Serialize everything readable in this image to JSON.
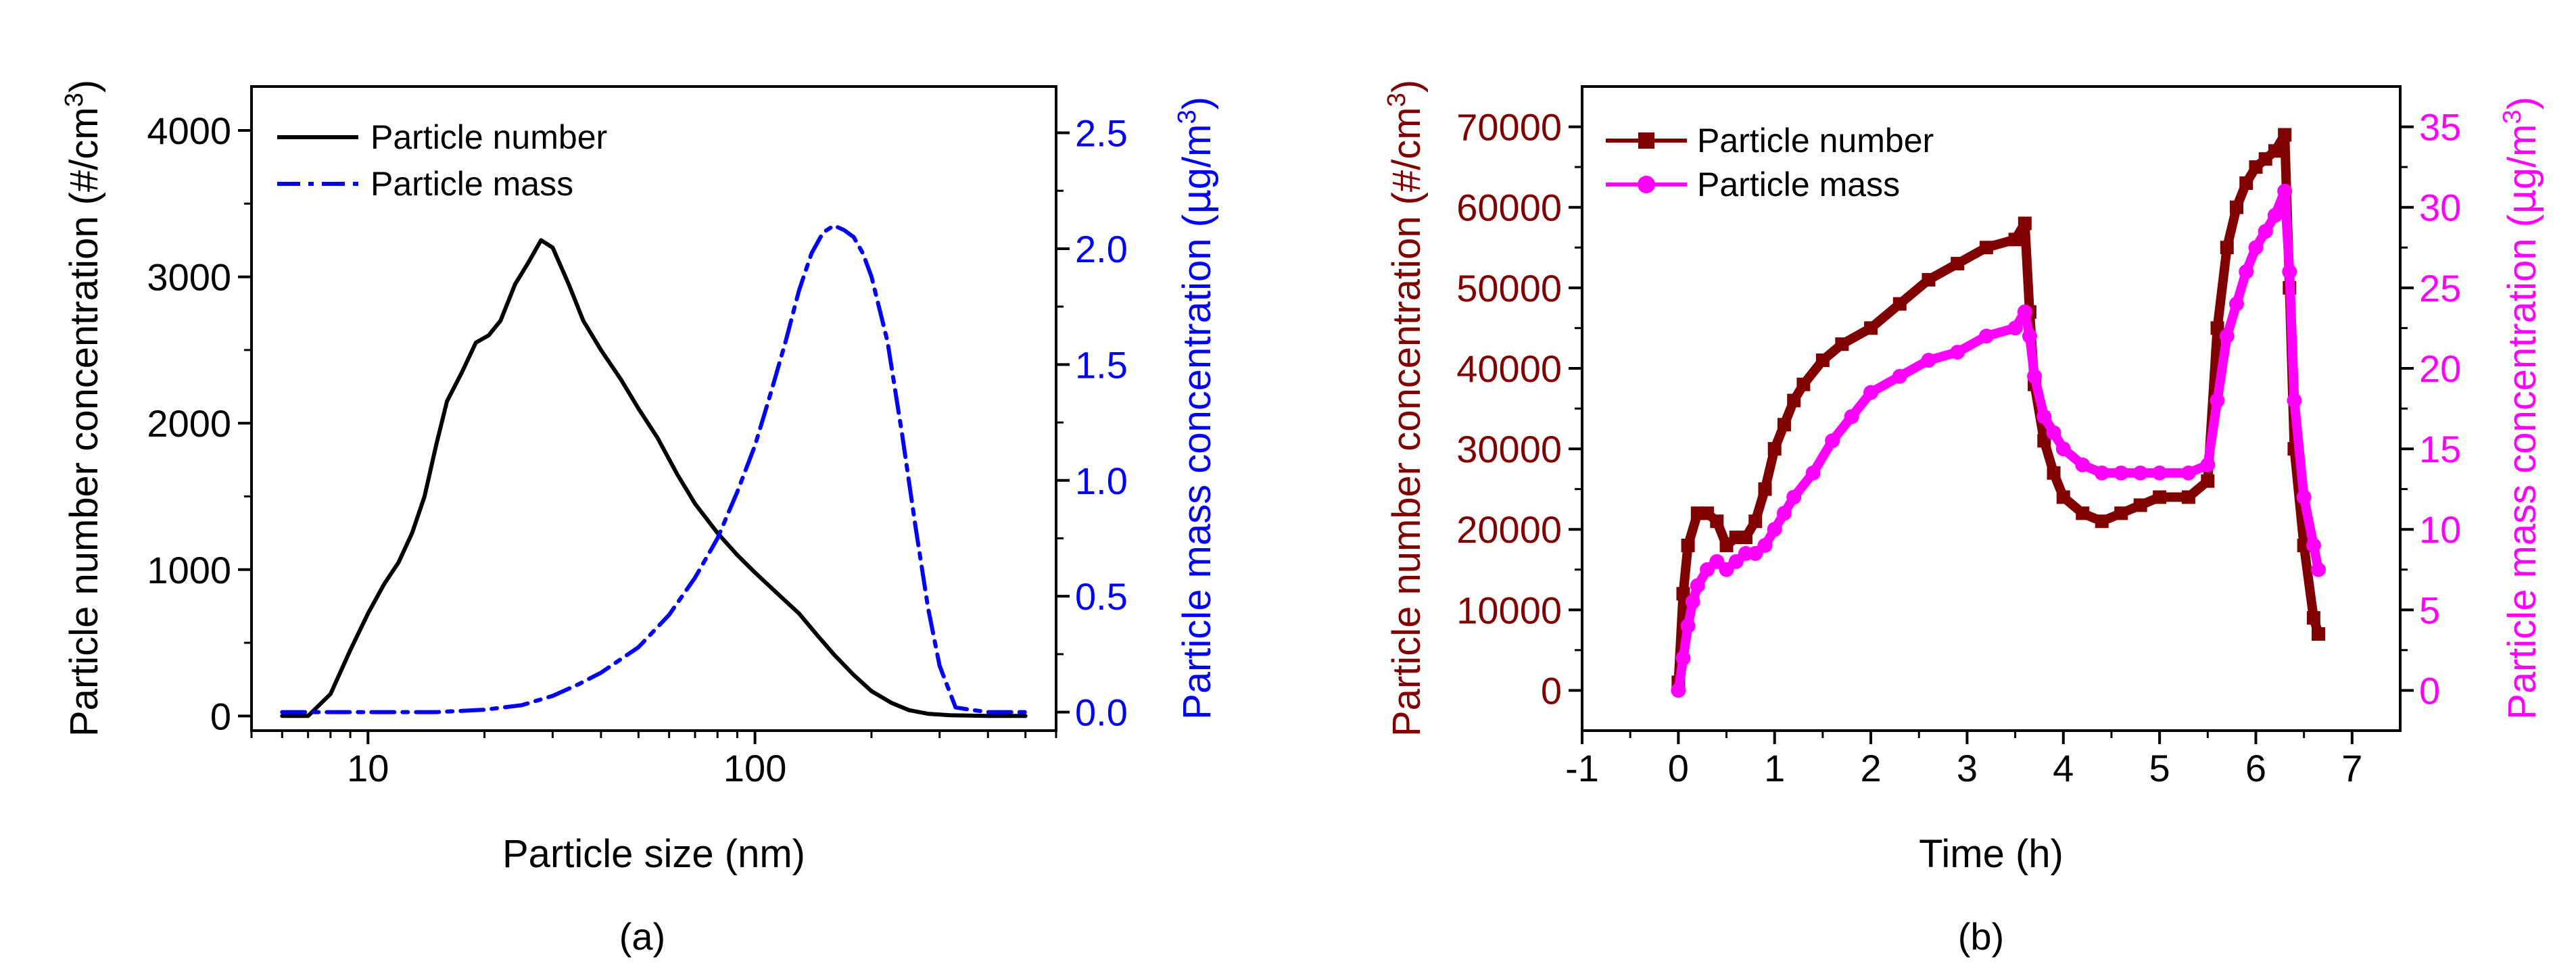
{
  "chart_data": [
    {
      "type": "line",
      "panel_label": "(a)",
      "xlabel": "Particle size (nm)",
      "x_scale": "log",
      "xlim": [
        5,
        600
      ],
      "x_ticks": [
        10,
        100
      ],
      "x_tick_labels": [
        "10",
        "100"
      ],
      "ylabel": "Particle number concentration (#/cm³)",
      "ylabel_parts": [
        "Particle number concentration (#/cm",
        "3",
        ")"
      ],
      "ylim": [
        -100,
        4300
      ],
      "y_ticks": [
        0,
        1000,
        2000,
        3000,
        4000
      ],
      "y_tick_labels": [
        "0",
        "1000",
        "2000",
        "3000",
        "4000"
      ],
      "y2label": "Particle mass concentration (µg/m³)",
      "y2label_parts": [
        "Particle mass concentration (",
        "µ",
        "g/m",
        "3",
        ")"
      ],
      "y2lim": [
        -0.08,
        2.7
      ],
      "y2_ticks": [
        0.0,
        0.5,
        1.0,
        1.5,
        2.0,
        2.5
      ],
      "y2_tick_labels": [
        "0.0",
        "0.5",
        "1.0",
        "1.5",
        "2.0",
        "2.5"
      ],
      "y2_color": "#0000ff",
      "legend_position": "top-left",
      "series": [
        {
          "name": "Particle number",
          "axis": "left",
          "color": "#000000",
          "style": "solid",
          "x": [
            6,
            7,
            8,
            9,
            10,
            11,
            12,
            13,
            14,
            15,
            16,
            17.5,
            19,
            20.5,
            22,
            24,
            26,
            28,
            30,
            33,
            36,
            40,
            45,
            50,
            56,
            63,
            70,
            80,
            90,
            100,
            115,
            130,
            145,
            160,
            180,
            200,
            225,
            250,
            280,
            320,
            400,
            500
          ],
          "values": [
            0,
            0,
            150,
            450,
            700,
            900,
            1050,
            1250,
            1500,
            1850,
            2150,
            2350,
            2550,
            2600,
            2700,
            2950,
            3100,
            3250,
            3200,
            2950,
            2700,
            2500,
            2300,
            2100,
            1900,
            1650,
            1450,
            1250,
            1100,
            980,
            830,
            700,
            550,
            420,
            280,
            170,
            90,
            40,
            15,
            5,
            0,
            0
          ]
        },
        {
          "name": "Particle mass",
          "axis": "right",
          "color": "#0000ff",
          "style": "dash-dot",
          "x": [
            6,
            7,
            8,
            10,
            12,
            15,
            20,
            25,
            30,
            35,
            40,
            50,
            60,
            70,
            80,
            90,
            100,
            110,
            120,
            130,
            140,
            150,
            160,
            170,
            180,
            190,
            200,
            220,
            240,
            260,
            280,
            300,
            330,
            360,
            400,
            500
          ],
          "values": [
            0,
            0,
            0,
            0,
            0,
            0,
            0.01,
            0.03,
            0.07,
            0.12,
            0.17,
            0.28,
            0.42,
            0.58,
            0.75,
            0.95,
            1.15,
            1.38,
            1.6,
            1.82,
            1.98,
            2.07,
            2.1,
            2.08,
            2.05,
            1.98,
            1.88,
            1.6,
            1.2,
            0.8,
            0.45,
            0.2,
            0.02,
            0.01,
            0.0,
            0.0
          ]
        }
      ]
    },
    {
      "type": "line",
      "panel_label": "(b)",
      "xlabel": "Time (h)",
      "xlim": [
        -1,
        7.5
      ],
      "x_ticks": [
        -1,
        0,
        1,
        2,
        3,
        4,
        5,
        6,
        7
      ],
      "x_tick_labels": [
        "-1",
        "0",
        "1",
        "2",
        "3",
        "4",
        "5",
        "6",
        "7"
      ],
      "ylabel": "Particle number concentration (#/cm³)",
      "ylabel_parts": [
        "Particle number concentration (#/cm",
        "3",
        ")"
      ],
      "ylim": [
        -5000,
        75000
      ],
      "y_ticks": [
        0,
        10000,
        20000,
        30000,
        40000,
        50000,
        60000,
        70000
      ],
      "y_tick_labels": [
        "0",
        "10000",
        "20000",
        "30000",
        "40000",
        "50000",
        "60000",
        "70000"
      ],
      "y_color": "#800000",
      "y2label": "Particle mass concentration (µg/m³)",
      "y2label_parts": [
        "Particle mass concentration (",
        "µ",
        "g/m",
        "3",
        ")"
      ],
      "y2lim": [
        -2.5,
        37.5
      ],
      "y2_ticks": [
        0,
        5,
        10,
        15,
        20,
        25,
        30,
        35
      ],
      "y2_tick_labels": [
        "0",
        "5",
        "10",
        "15",
        "20",
        "25",
        "30",
        "35"
      ],
      "y2_color": "#ff00ff",
      "legend_position": "top-left",
      "series": [
        {
          "name": "Particle number",
          "axis": "left",
          "color": "#800000",
          "marker": "square",
          "x": [
            0,
            0.05,
            0.1,
            0.2,
            0.3,
            0.4,
            0.5,
            0.6,
            0.7,
            0.8,
            0.9,
            1.0,
            1.1,
            1.2,
            1.3,
            1.5,
            1.7,
            2.0,
            2.3,
            2.6,
            2.9,
            3.2,
            3.5,
            3.6,
            3.65,
            3.7,
            3.8,
            3.9,
            4.0,
            4.2,
            4.4,
            4.6,
            4.8,
            5.0,
            5.3,
            5.5,
            5.6,
            5.7,
            5.8,
            5.9,
            6.0,
            6.1,
            6.2,
            6.3,
            6.35,
            6.4,
            6.5,
            6.6,
            6.65
          ],
          "values": [
            1000,
            12000,
            18000,
            22000,
            22000,
            21000,
            18000,
            19000,
            19000,
            21000,
            25000,
            30000,
            33000,
            36000,
            38000,
            41000,
            43000,
            45000,
            48000,
            51000,
            53000,
            55000,
            56000,
            58000,
            47000,
            38000,
            31000,
            27000,
            24000,
            22000,
            21000,
            22000,
            23000,
            24000,
            24000,
            26000,
            45000,
            55000,
            60000,
            63000,
            65000,
            66000,
            67000,
            69000,
            50000,
            30000,
            18000,
            9000,
            7000
          ]
        },
        {
          "name": "Particle mass",
          "axis": "right",
          "color": "#ff00ff",
          "marker": "circle",
          "x": [
            0,
            0.05,
            0.1,
            0.15,
            0.2,
            0.3,
            0.4,
            0.5,
            0.6,
            0.7,
            0.8,
            0.9,
            1.0,
            1.1,
            1.2,
            1.4,
            1.6,
            1.8,
            2.0,
            2.3,
            2.6,
            2.9,
            3.2,
            3.5,
            3.6,
            3.65,
            3.7,
            3.8,
            3.9,
            4.0,
            4.2,
            4.4,
            4.6,
            4.8,
            5.0,
            5.3,
            5.5,
            5.6,
            5.7,
            5.8,
            5.9,
            6.0,
            6.1,
            6.2,
            6.3,
            6.35,
            6.4,
            6.5,
            6.6,
            6.65
          ],
          "values": [
            0,
            2,
            4,
            5.5,
            6.5,
            7.5,
            8,
            7.5,
            8,
            8.5,
            8.5,
            9,
            10,
            11,
            12,
            13.5,
            15.5,
            17,
            18.5,
            19.5,
            20.5,
            21,
            22,
            22.5,
            23.5,
            22,
            19.5,
            17,
            16,
            15,
            14,
            13.5,
            13.5,
            13.5,
            13.5,
            13.5,
            14,
            18,
            22,
            24,
            26,
            27.5,
            28.5,
            29.5,
            31,
            26,
            18,
            12,
            9,
            7.5
          ]
        }
      ]
    }
  ]
}
